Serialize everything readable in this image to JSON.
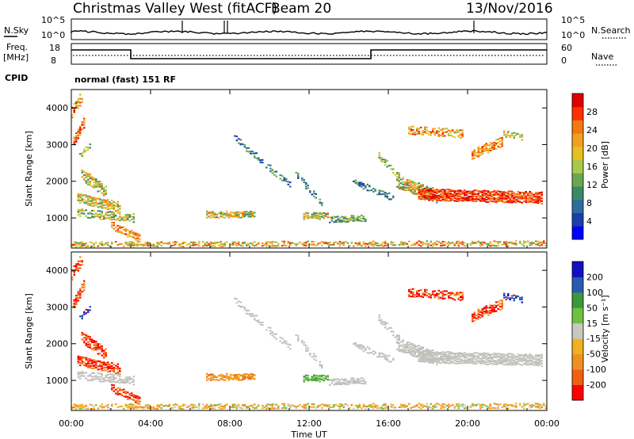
{
  "header": {
    "station": "Christmas Valley West (fitACF)",
    "beam": "Beam 20",
    "date": "13/Nov/2016"
  },
  "top_panels": {
    "nsky_label": "N.Sky",
    "nsky_ticks": [
      "10^5",
      "10^0"
    ],
    "nsearch_label": "N.Search",
    "nsearch_ticks": [
      "10^5",
      "10^0"
    ],
    "freq_label": "Freq.",
    "freq_unit": "[MHz]",
    "freq_ticks": [
      "18",
      "8"
    ],
    "nave_label": "Nave",
    "nave_ticks": [
      "60",
      "0"
    ],
    "cpid_label": "CPID",
    "cpid_value": "normal (fast) 151 RF"
  },
  "colors": {
    "power": [
      "#0000ff",
      "#1a3fa8",
      "#2e6b9e",
      "#3a8a6a",
      "#6aa84f",
      "#a8c84a",
      "#e6c020",
      "#f0a020",
      "#f07a10",
      "#ff3000",
      "#e00000"
    ],
    "velocity": [
      "#ff0000",
      "#f06010",
      "#f09020",
      "#f0b020",
      "#c8c8c0",
      "#70c040",
      "#3a9a3a",
      "#2a5ab0",
      "#1010c0"
    ],
    "ground_scatter": "#c0c0bc"
  },
  "chart_data": [
    {
      "type": "heatmap",
      "name": "power",
      "ylabel": "Slant Range [km]",
      "xlabel": "",
      "x_ticks": [
        "00:00",
        "04:00",
        "08:00",
        "12:00",
        "16:00",
        "20:00",
        "00:00"
      ],
      "y_ticks": [
        "1000",
        "2000",
        "3000",
        "4000"
      ],
      "xlim": [
        0,
        24
      ],
      "ylim": [
        180,
        4500
      ],
      "colorbar_label": "Power [dB]",
      "colorbar_ticks": [
        "4",
        "8",
        "12",
        "16",
        "20",
        "24",
        "28"
      ],
      "colorbar_range": [
        0,
        30
      ]
    },
    {
      "type": "heatmap",
      "name": "velocity",
      "ylabel": "Slant Range [km]",
      "xlabel": "Time UT",
      "x_ticks": [
        "00:00",
        "04:00",
        "08:00",
        "12:00",
        "16:00",
        "20:00",
        "00:00"
      ],
      "y_ticks": [
        "1000",
        "2000",
        "3000",
        "4000"
      ],
      "xlim": [
        0,
        24
      ],
      "ylim": [
        180,
        4500
      ],
      "colorbar_label": "Velocity [m s⁻¹]",
      "colorbar_ticks": [
        "200",
        "100",
        "50",
        "15",
        "-15",
        "-50",
        "-100",
        "-200"
      ]
    }
  ]
}
